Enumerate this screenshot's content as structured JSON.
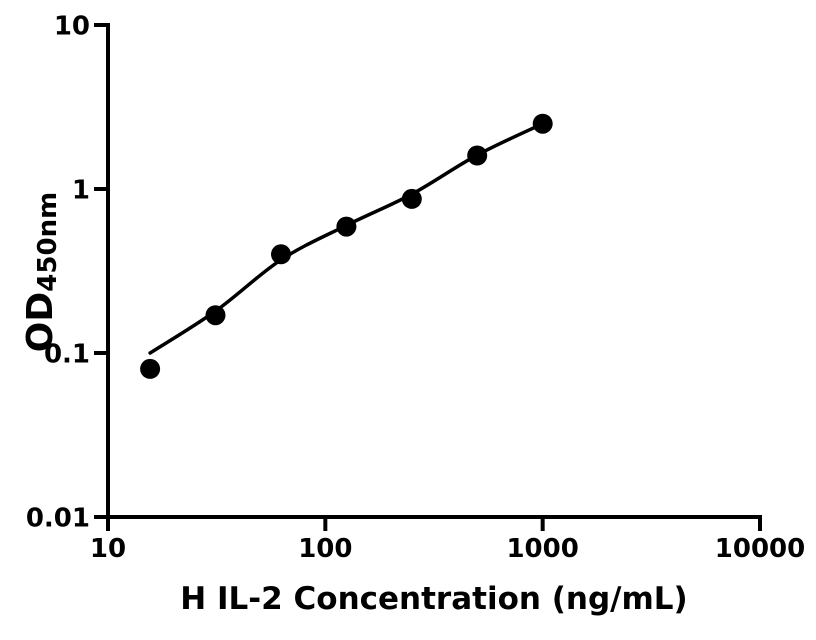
{
  "figure": {
    "background_color": "#ffffff",
    "foreground_color": "#000000"
  },
  "chart_data": {
    "type": "scatter",
    "title": "",
    "xlabel": "H IL-2 Concentration (ng/mL)",
    "ylabel_main": "OD",
    "ylabel_subscript": "450nm",
    "xscale": "log",
    "yscale": "log",
    "xlim": [
      10,
      10000
    ],
    "ylim": [
      0.01,
      10
    ],
    "x_ticks": [
      10,
      100,
      1000,
      10000
    ],
    "x_tick_labels": [
      "10",
      "100",
      "1000",
      "10000"
    ],
    "y_ticks": [
      0.01,
      0.1,
      1,
      10
    ],
    "y_tick_labels": [
      "0.01",
      "0.1",
      "1",
      "10"
    ],
    "grid": false,
    "legend": null,
    "marker_color": "#000000",
    "line_color": "#000000",
    "series": [
      {
        "marker": "filled-circle",
        "x": [
          15.625,
          31.25,
          62.5,
          125,
          250,
          500,
          1000
        ],
        "y": [
          0.08,
          0.17,
          0.4,
          0.59,
          0.87,
          1.6,
          2.5
        ]
      }
    ],
    "fit_curve": {
      "x": [
        15.625,
        31.25,
        62.5,
        125,
        250,
        500,
        1000
      ],
      "y": [
        0.1,
        0.18,
        0.37,
        0.6,
        0.93,
        1.61,
        2.5
      ]
    }
  }
}
